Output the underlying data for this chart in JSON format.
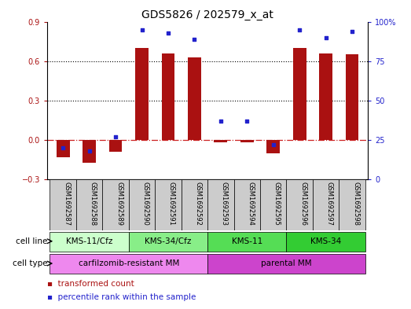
{
  "title": "GDS5826 / 202579_x_at",
  "samples": [
    "GSM1692587",
    "GSM1692588",
    "GSM1692589",
    "GSM1692590",
    "GSM1692591",
    "GSM1692592",
    "GSM1692593",
    "GSM1692594",
    "GSM1692595",
    "GSM1692596",
    "GSM1692597",
    "GSM1692598"
  ],
  "bar_values": [
    -0.13,
    -0.17,
    -0.09,
    0.7,
    0.66,
    0.63,
    -0.02,
    -0.02,
    -0.1,
    0.7,
    0.66,
    0.65
  ],
  "dot_values_pct": [
    20,
    18,
    27,
    95,
    93,
    89,
    37,
    37,
    22,
    95,
    90,
    94
  ],
  "bar_color": "#aa1111",
  "dot_color": "#2222cc",
  "ylim_left": [
    -0.3,
    0.9
  ],
  "ylim_right": [
    0,
    100
  ],
  "yticks_left": [
    -0.3,
    0.0,
    0.3,
    0.6,
    0.9
  ],
  "yticks_right": [
    0,
    25,
    50,
    75,
    100
  ],
  "zero_line_color": "#cc2222",
  "cell_lines": [
    {
      "label": "KMS-11/Cfz",
      "start": 0,
      "end": 3,
      "color": "#ccffcc"
    },
    {
      "label": "KMS-34/Cfz",
      "start": 3,
      "end": 6,
      "color": "#88ee88"
    },
    {
      "label": "KMS-11",
      "start": 6,
      "end": 9,
      "color": "#55dd55"
    },
    {
      "label": "KMS-34",
      "start": 9,
      "end": 12,
      "color": "#33cc33"
    }
  ],
  "cell_types": [
    {
      "label": "carfilzomib-resistant MM",
      "start": 0,
      "end": 6,
      "color": "#ee88ee"
    },
    {
      "label": "parental MM",
      "start": 6,
      "end": 12,
      "color": "#cc44cc"
    }
  ],
  "legend_bar_label": "transformed count",
  "legend_dot_label": "percentile rank within the sample",
  "row_label_cell_line": "cell line",
  "row_label_cell_type": "cell type",
  "title_fontsize": 10,
  "tick_fontsize": 7,
  "sample_label_fontsize": 6.0,
  "sample_bg_color": "#cccccc",
  "bar_width": 0.5
}
